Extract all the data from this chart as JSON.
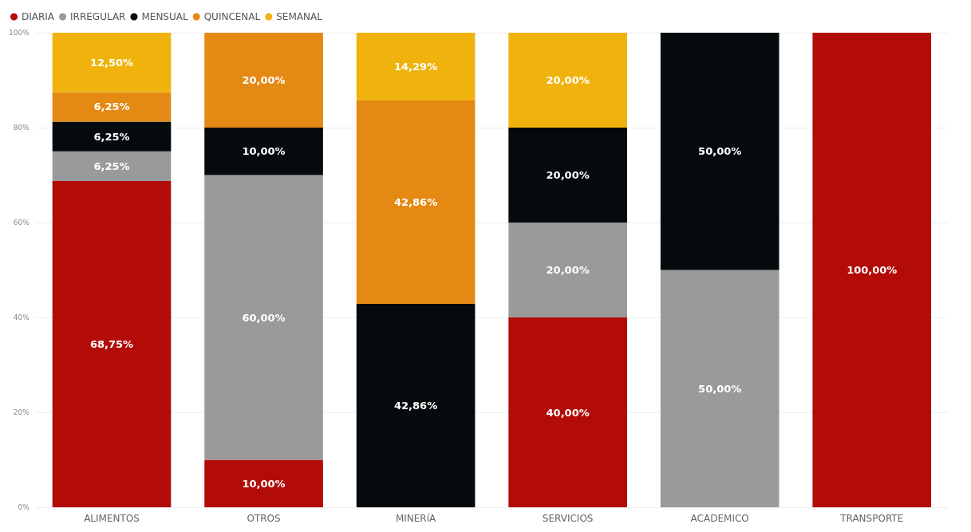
{
  "chart_data": {
    "type": "bar",
    "stacked": true,
    "categories": [
      "ALIMENTOS",
      "OTROS",
      "MINERíA",
      "SERVICIOS",
      "ACADEMICO",
      "TRANSPORTE"
    ],
    "series": [
      {
        "name": "DIARIA",
        "color": "#b30b08",
        "values": [
          68.75,
          10,
          null,
          40,
          null,
          100
        ],
        "value_labels": [
          "68,75%",
          "10,00%",
          null,
          "40,00%",
          null,
          "100,00%"
        ]
      },
      {
        "name": "IRREGULAR",
        "color": "#999a9c",
        "values": [
          6.25,
          60,
          null,
          20,
          50,
          null
        ],
        "value_labels": [
          "6,25%",
          "60,00%",
          null,
          "20,00%",
          "50,00%",
          null
        ]
      },
      {
        "name": "MENSUAL",
        "color": "#050a0c",
        "values": [
          6.25,
          10,
          42.86,
          20,
          50,
          null
        ],
        "value_labels": [
          "6,25%",
          "10,00%",
          "42,86%",
          "20,00%",
          "50,00%",
          null
        ]
      },
      {
        "name": "QUINCENAL",
        "color": "#e38914",
        "values": [
          6.25,
          20,
          42.86,
          null,
          null,
          null
        ],
        "value_labels": [
          "6,25%",
          "20,00%",
          "42,86%",
          null,
          null,
          null
        ]
      },
      {
        "name": "SEMANAL",
        "color": "#f0b30e",
        "values": [
          12.5,
          null,
          14.29,
          20,
          null,
          null
        ],
        "value_labels": [
          "12,50%",
          null,
          "14,29%",
          "20,00%",
          null,
          null
        ]
      }
    ],
    "ylim": [
      0,
      100
    ],
    "yticks": [
      {
        "value": 0,
        "label": "0%"
      },
      {
        "value": 20,
        "label": "20%"
      },
      {
        "value": 40,
        "label": "40%"
      },
      {
        "value": 60,
        "label": "60%"
      },
      {
        "value": 80,
        "label": "80%"
      },
      {
        "value": 100,
        "label": "100%"
      }
    ],
    "grid": "y",
    "legend": "top left"
  }
}
